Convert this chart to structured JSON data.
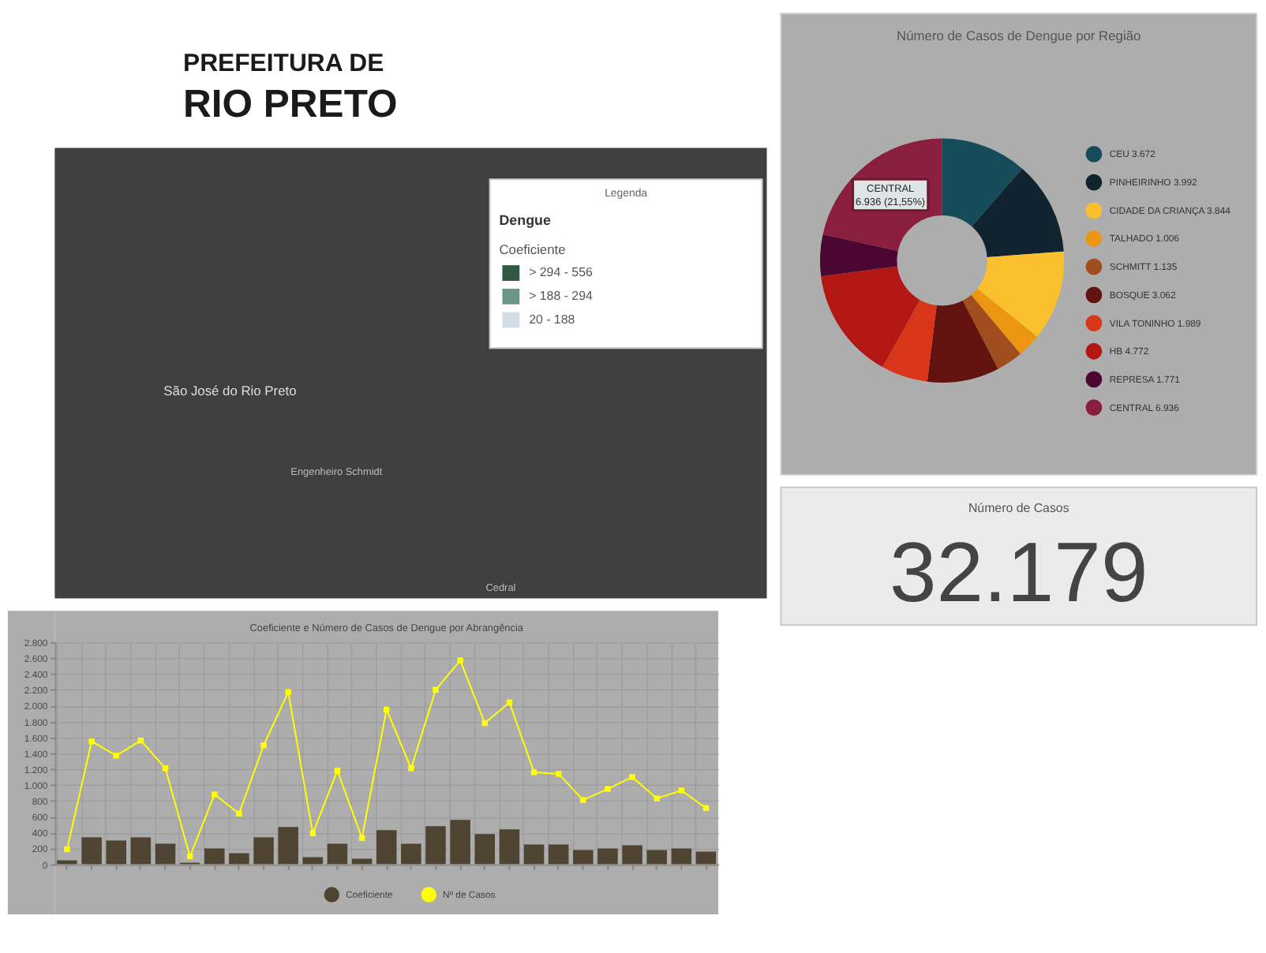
{
  "chart_data": [
    {
      "type": "other",
      "annotations": [
        "PREFEITURA DE",
        "RIO PRETO"
      ]
    },
    {
      "type": "donut",
      "title": "Número de Casos de Dengue por Região",
      "categories": [
        "CEU",
        "PINHEIRINHO",
        "CIDADE DA CRIANÇA",
        "TALHADO",
        "SCHMITT",
        "BOSQUE",
        "VILA TONINHO",
        "HB",
        "REPRESA",
        "CENTRAL"
      ],
      "values": [
        3672,
        3992,
        3844,
        1006,
        1135,
        3062,
        1989,
        4772,
        1771,
        6936
      ],
      "value_labels": [
        "3.672",
        "3.992",
        "3.844",
        "1.006",
        "1.135",
        "3.062",
        "1.989",
        "4.772",
        "1.771",
        "6.936"
      ],
      "colors": [
        "#164c59",
        "#10232f",
        "#fbc02d",
        "#ec9613",
        "#a24d1d",
        "#62130f",
        "#d83519",
        "#b21713",
        "#4b0631",
        "#891e3f"
      ],
      "legend": "right",
      "annotations": [
        "CENTRAL",
        "6.936 (21,55%)"
      ]
    },
    {
      "type": "other",
      "title": "Legenda",
      "subtitle": "Dengue",
      "legend_title": "Coeficiente",
      "categories": [
        "> 294 - 556",
        "> 188 - 294",
        "20 - 188"
      ],
      "colors": [
        "#2f5944",
        "#6b9683",
        "#d3dde6"
      ],
      "annotations": [
        "São José do Rio Preto",
        "Engenheiro Schmidt",
        "Cedral"
      ]
    },
    {
      "type": "other",
      "title": "Número de Casos",
      "annotations": [
        "32.179"
      ]
    },
    {
      "type": "bar",
      "title": "Coeficiente e Número de Casos de Dengue por Abrangência",
      "categories": [
        null,
        null,
        null,
        null,
        null,
        null,
        null,
        null,
        null,
        null,
        null,
        null,
        null,
        null,
        null,
        null,
        null,
        null,
        null,
        null,
        null,
        null,
        null,
        null,
        null,
        null,
        null
      ],
      "series": [
        {
          "name": "Coeficiente",
          "type": "bar",
          "color": "#4f4431",
          "values": [
            50,
            340,
            300,
            340,
            260,
            20,
            200,
            140,
            340,
            470,
            90,
            260,
            70,
            430,
            260,
            480,
            560,
            380,
            440,
            250,
            250,
            180,
            200,
            240,
            180,
            200,
            160
          ]
        },
        {
          "name": "Nº de Casos",
          "type": "line",
          "color": "#ffff00",
          "values": [
            190,
            1550,
            1370,
            1560,
            1210,
            100,
            880,
            640,
            1500,
            2170,
            390,
            1180,
            330,
            1950,
            1210,
            2200,
            2570,
            1780,
            2040,
            1160,
            1140,
            810,
            950,
            1100,
            830,
            930,
            710
          ]
        }
      ],
      "ylim": [
        0,
        2800
      ],
      "yticks": [
        0,
        200,
        400,
        600,
        800,
        {
          "value": 1000,
          "label": "1.000"
        },
        {
          "value": 1200,
          "label": "1.200"
        },
        {
          "value": 1400,
          "label": "1.400"
        },
        {
          "value": 1600,
          "label": "1.600"
        },
        {
          "value": 1800,
          "label": "1.800"
        },
        {
          "value": 2000,
          "label": "2.000"
        },
        {
          "value": 2200,
          "label": "2.200"
        },
        {
          "value": 2400,
          "label": "2.400"
        },
        {
          "value": 2600,
          "label": "2.600"
        },
        {
          "value": 2800,
          "label": "2.800"
        }
      ],
      "grid": true,
      "legend": "bottom",
      "marker": "square",
      "tick_labels": "y"
    }
  ]
}
